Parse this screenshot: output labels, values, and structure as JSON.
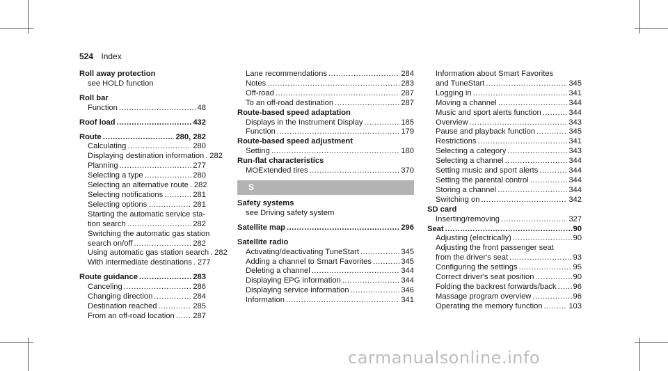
{
  "header": {
    "page_number": "524",
    "title": "Index"
  },
  "col1": [
    {
      "kind": "head",
      "text": "Roll away protection"
    },
    {
      "kind": "cont",
      "text": "see HOLD function"
    },
    {
      "kind": "gap"
    },
    {
      "kind": "head",
      "text": "Roll bar"
    },
    {
      "kind": "entry",
      "text": "Function",
      "page": "48"
    },
    {
      "kind": "gap"
    },
    {
      "kind": "headpage",
      "text": "Roof load",
      "page": "432"
    },
    {
      "kind": "gap"
    },
    {
      "kind": "headpage",
      "text": "Route",
      "page": "280, 282"
    },
    {
      "kind": "entry",
      "text": "Calculating",
      "page": "280"
    },
    {
      "kind": "entry",
      "text": "Displaying destination information",
      "page": "282"
    },
    {
      "kind": "entry",
      "text": "Planning",
      "page": "277"
    },
    {
      "kind": "entry",
      "text": "Selecting a type",
      "page": "280"
    },
    {
      "kind": "entry",
      "text": "Selecting an alternative route",
      "page": "282"
    },
    {
      "kind": "entry",
      "text": "Selecting notifications",
      "page": "281"
    },
    {
      "kind": "entry",
      "text": "Selecting options",
      "page": "281"
    },
    {
      "kind": "cont",
      "text": "Starting the automatic service sta-"
    },
    {
      "kind": "entry",
      "text": "tion search",
      "page": "282"
    },
    {
      "kind": "cont",
      "text": "Switching the automatic gas station"
    },
    {
      "kind": "entry",
      "text": "search on/off",
      "page": "282"
    },
    {
      "kind": "entry",
      "text": "Using automatic gas station search",
      "page": "282"
    },
    {
      "kind": "entry",
      "text": "With intermediate destinations",
      "page": "277"
    },
    {
      "kind": "gap"
    },
    {
      "kind": "headpage",
      "text": "Route guidance",
      "page": "283"
    },
    {
      "kind": "entry",
      "text": "Canceling",
      "page": "286"
    },
    {
      "kind": "entry",
      "text": "Changing direction",
      "page": "284"
    },
    {
      "kind": "entry",
      "text": "Destination reached",
      "page": "285"
    },
    {
      "kind": "entry",
      "text": "From an off-road location",
      "page": "287"
    }
  ],
  "col2": [
    {
      "kind": "entry",
      "text": "Lane recommendations",
      "page": "284"
    },
    {
      "kind": "entry",
      "text": "Notes",
      "page": "283"
    },
    {
      "kind": "entry",
      "text": "Off-road",
      "page": "287"
    },
    {
      "kind": "entry",
      "text": "To an off-road destination",
      "page": "287"
    },
    {
      "kind": "head",
      "text": "Route-based speed adaptation"
    },
    {
      "kind": "entry",
      "text": "Displays in the Instrument Display",
      "page": "185"
    },
    {
      "kind": "entry",
      "text": "Function",
      "page": "179"
    },
    {
      "kind": "head",
      "text": "Route-based speed adjustment"
    },
    {
      "kind": "entry",
      "text": "Setting",
      "page": "180"
    },
    {
      "kind": "head",
      "text": "Run-flat characteristics"
    },
    {
      "kind": "entry",
      "text": "MOExtended tires",
      "page": "370"
    },
    {
      "kind": "section",
      "text": "S"
    },
    {
      "kind": "head",
      "text": "Safety systems"
    },
    {
      "kind": "cont",
      "text": "see Driving safety system"
    },
    {
      "kind": "gap"
    },
    {
      "kind": "headpage",
      "text": "Satellite map",
      "page": "296"
    },
    {
      "kind": "gap"
    },
    {
      "kind": "head",
      "text": "Satellite radio"
    },
    {
      "kind": "entry",
      "text": "Activating/deactivating TuneStart",
      "page": "345"
    },
    {
      "kind": "entry",
      "text": "Adding a channel to Smart Favorites",
      "page": "345"
    },
    {
      "kind": "entry",
      "text": "Deleting a channel",
      "page": "344"
    },
    {
      "kind": "entry",
      "text": "Displaying EPG information",
      "page": "344"
    },
    {
      "kind": "entry",
      "text": "Displaying service information",
      "page": "346"
    },
    {
      "kind": "entry",
      "text": "Information",
      "page": "341"
    }
  ],
  "col3": [
    {
      "kind": "cont",
      "text": "Information about Smart Favorites"
    },
    {
      "kind": "entry",
      "text": "and TuneStart",
      "page": "345"
    },
    {
      "kind": "entry",
      "text": "Logging in",
      "page": "341"
    },
    {
      "kind": "entry",
      "text": "Moving a channel",
      "page": "344"
    },
    {
      "kind": "entry",
      "text": "Music and sport alerts function",
      "page": "344"
    },
    {
      "kind": "entry",
      "text": "Overview",
      "page": "343"
    },
    {
      "kind": "entry",
      "text": "Pause and playback function",
      "page": "345"
    },
    {
      "kind": "entry",
      "text": "Restrictions",
      "page": "341"
    },
    {
      "kind": "entry",
      "text": "Selecting a category",
      "page": "343"
    },
    {
      "kind": "entry",
      "text": "Selecting a channel",
      "page": "344"
    },
    {
      "kind": "entry",
      "text": "Setting music and sport alerts",
      "page": "344"
    },
    {
      "kind": "entry",
      "text": "Setting the parental control",
      "page": "344"
    },
    {
      "kind": "entry",
      "text": "Storing a channel",
      "page": "344"
    },
    {
      "kind": "entry",
      "text": "Switching on",
      "page": "342"
    },
    {
      "kind": "head",
      "text": "SD card"
    },
    {
      "kind": "entry",
      "text": "Inserting/removing",
      "page": "327"
    },
    {
      "kind": "headpage",
      "text": "Seat",
      "page": "90"
    },
    {
      "kind": "entry",
      "text": "Adjusting (electrically)",
      "page": "90"
    },
    {
      "kind": "cont",
      "text": "Adjusting the front passenger seat"
    },
    {
      "kind": "entry",
      "text": "from the driver's seat",
      "page": "93"
    },
    {
      "kind": "entry",
      "text": "Configuring the settings",
      "page": "95"
    },
    {
      "kind": "entry",
      "text": "Correct driver's seat position",
      "page": "90"
    },
    {
      "kind": "entry",
      "text": "Folding the backrest forwards/back",
      "page": "96"
    },
    {
      "kind": "entry",
      "text": "Massage program overview",
      "page": "96"
    },
    {
      "kind": "entry",
      "text": "Operating the memory function",
      "page": "103"
    }
  ],
  "watermark": "carmanualsonline.info"
}
